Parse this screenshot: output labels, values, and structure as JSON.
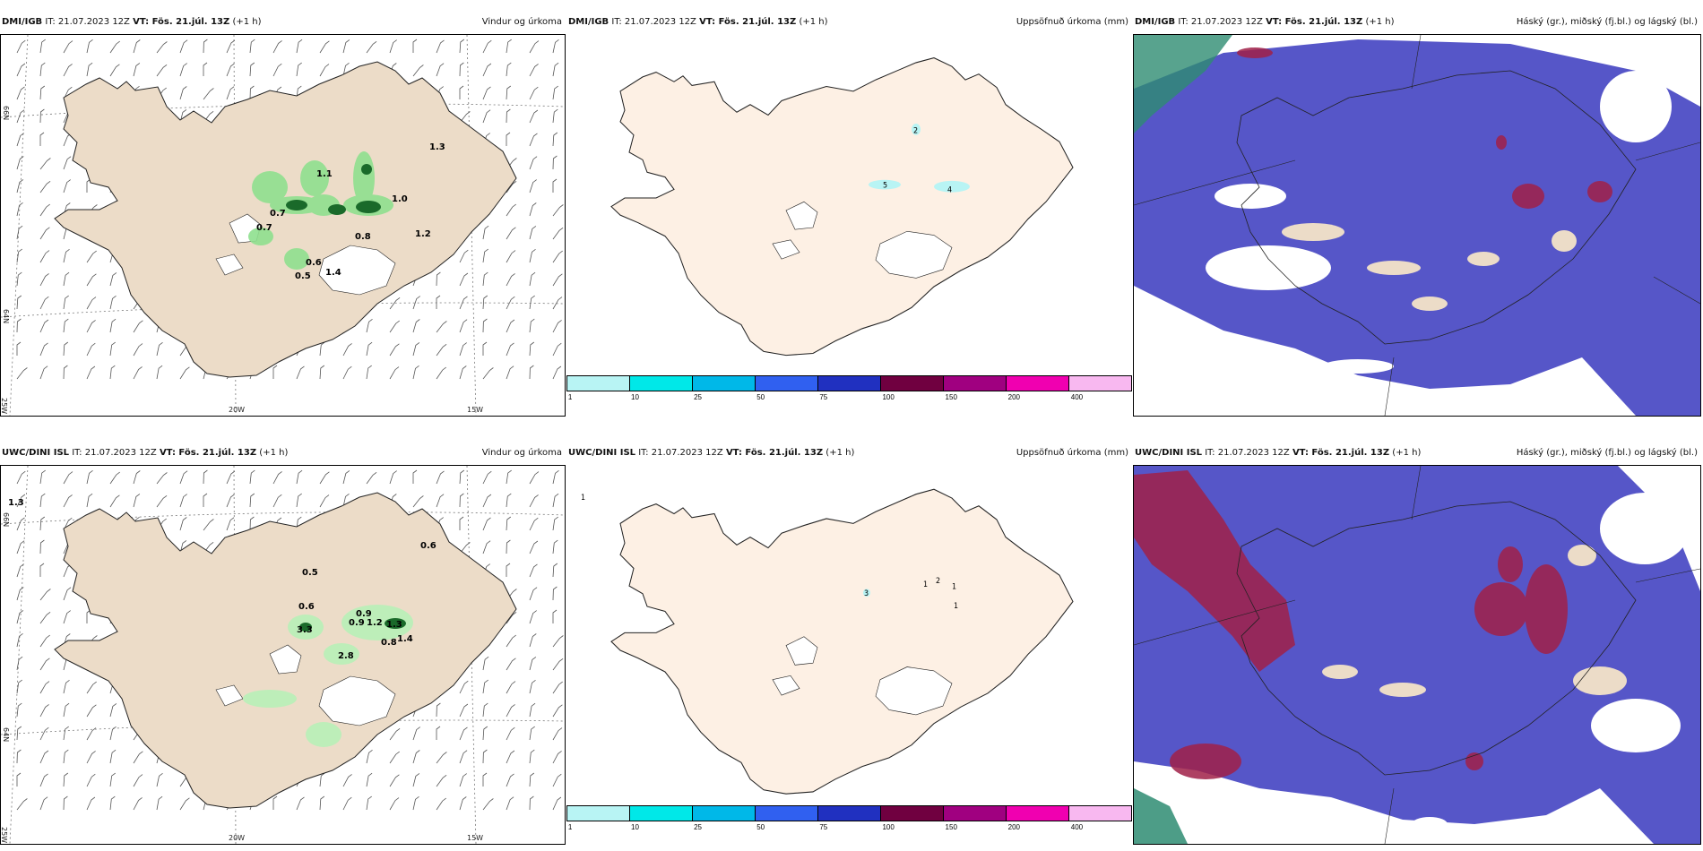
{
  "rows": [
    {
      "model": "DMI/IGB",
      "panels": [
        {
          "id": "wind",
          "model": "DMI/IGB",
          "it": "IT: 21.07.2023 12Z",
          "vt": "VT: Fös. 21.júl. 13Z",
          "offset": "(+1 h)",
          "title": "Vindur og úrkoma",
          "values": [
            "0.7",
            "0.7",
            "0.6",
            "0.5",
            "1.4",
            "1.1",
            "1.0",
            "0.8",
            "1.2",
            "1.3"
          ]
        },
        {
          "id": "accum",
          "model": "DMI/IGB",
          "it": "IT: 21.07.2023 12Z",
          "vt": "VT: Fös. 21.júl. 13Z",
          "offset": "(+1 h)",
          "title": "Uppsöfnuð úrkoma (mm)",
          "values": [
            "2",
            "5",
            "4"
          ]
        },
        {
          "id": "cloud",
          "model": "DMI/IGB",
          "it": "IT: 21.07.2023 12Z",
          "vt": "VT: Fös. 21.júl. 13Z",
          "offset": "(+1 h)",
          "title": "Háský (gr.), miðský (fj.bl.) og lágský (bl.)"
        }
      ]
    },
    {
      "model": "UWC/DINI ISL",
      "panels": [
        {
          "id": "wind",
          "model": "UWC/DINI ISL",
          "it": "IT: 21.07.2023 12Z",
          "vt": "VT: Fös. 21.júl. 13Z",
          "offset": "(+1 h)",
          "title": "Vindur og úrkoma",
          "values": [
            "1.3",
            "0.6",
            "0.5",
            "0.6",
            "3.3",
            "0.9",
            "0.9",
            "1.2",
            "1.3",
            "2.8",
            "0.8",
            "1.4"
          ]
        },
        {
          "id": "accum",
          "model": "UWC/DINI ISL",
          "it": "IT: 21.07.2023 12Z",
          "vt": "VT: Fös. 21.júl. 13Z",
          "offset": "(+1 h)",
          "title": "Uppsöfnuð úrkoma (mm)",
          "values": [
            "1",
            "3",
            "1",
            "2",
            "1",
            "1"
          ]
        },
        {
          "id": "cloud",
          "model": "UWC/DINI ISL",
          "it": "IT: 21.07.2023 12Z",
          "vt": "VT: Fös. 21.júl. 13Z",
          "offset": "(+1 h)",
          "title": "Háský (gr.), miðský (fj.bl.) og lágský (bl.)"
        }
      ]
    }
  ],
  "axes": {
    "lat_top": "66N",
    "lat_bottom": "64N",
    "lon_left": "25W",
    "lon_mid": "20W",
    "lon_right": "15W"
  },
  "colorbar": {
    "colors": [
      "#b8f4f4",
      "#00e8e8",
      "#00b8e8",
      "#3060f0",
      "#2030c0",
      "#700040",
      "#a00080",
      "#f000b0",
      "#f8b8f0"
    ],
    "labels": [
      "1",
      "10",
      "25",
      "50",
      "75",
      "100",
      "150",
      "200",
      "400"
    ]
  }
}
